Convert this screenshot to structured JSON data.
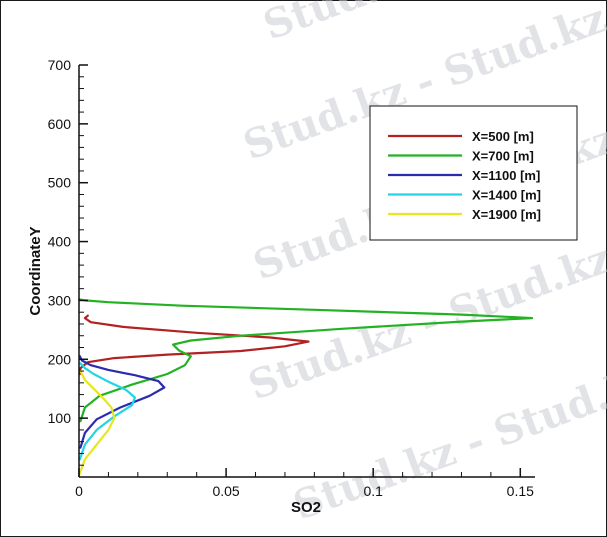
{
  "chart_data": {
    "type": "line",
    "xlabel": "SO2",
    "ylabel": "CoordinateY",
    "xlim": [
      0,
      0.155
    ],
    "ylim": [
      0,
      700
    ],
    "x_ticks": [
      0,
      0.05,
      0.1,
      0.15
    ],
    "x_tick_labels": [
      "0",
      "0.05",
      "0.1",
      "0.15"
    ],
    "y_ticks": [
      100,
      200,
      300,
      400,
      500,
      600,
      700
    ],
    "y_tick_labels": [
      "100",
      "200",
      "300",
      "400",
      "500",
      "600",
      "700"
    ],
    "legend_position": "top-right",
    "series": [
      {
        "name": "X=500 [m]",
        "color": "#b22222",
        "points": [
          [
            0.0003,
            175
          ],
          [
            0.0005,
            185
          ],
          [
            0.003,
            195
          ],
          [
            0.012,
            202
          ],
          [
            0.03,
            208
          ],
          [
            0.055,
            214
          ],
          [
            0.07,
            222
          ],
          [
            0.078,
            230
          ],
          [
            0.065,
            237
          ],
          [
            0.04,
            245
          ],
          [
            0.015,
            255
          ],
          [
            0.004,
            263
          ],
          [
            0.002,
            270
          ],
          [
            0.003,
            274
          ]
        ]
      },
      {
        "name": "X=700 [m]",
        "color": "#22b222",
        "points": [
          [
            0.0005,
            95
          ],
          [
            0.002,
            118
          ],
          [
            0.007,
            138
          ],
          [
            0.018,
            157
          ],
          [
            0.03,
            175
          ],
          [
            0.036,
            190
          ],
          [
            0.038,
            205
          ],
          [
            0.034,
            215
          ],
          [
            0.032,
            225
          ],
          [
            0.038,
            232
          ],
          [
            0.055,
            240
          ],
          [
            0.09,
            252
          ],
          [
            0.13,
            264
          ],
          [
            0.154,
            270
          ],
          [
            0.13,
            276
          ],
          [
            0.08,
            284
          ],
          [
            0.035,
            291
          ],
          [
            0.01,
            297
          ],
          [
            0.002,
            300
          ],
          [
            0,
            302
          ]
        ]
      },
      {
        "name": "X=1100 [m]",
        "color": "#2b2bb0",
        "points": [
          [
            0.0005,
            50
          ],
          [
            0.002,
            75
          ],
          [
            0.006,
            98
          ],
          [
            0.014,
            118
          ],
          [
            0.024,
            138
          ],
          [
            0.029,
            152
          ],
          [
            0.027,
            163
          ],
          [
            0.019,
            173
          ],
          [
            0.01,
            182
          ],
          [
            0.004,
            190
          ],
          [
            0.001,
            198
          ],
          [
            0.0003,
            205
          ]
        ]
      },
      {
        "name": "X=1400 [m]",
        "color": "#22d4e6",
        "points": [
          [
            0.0003,
            30
          ],
          [
            0.002,
            55
          ],
          [
            0.006,
            80
          ],
          [
            0.012,
            103
          ],
          [
            0.018,
            122
          ],
          [
            0.019,
            135
          ],
          [
            0.016,
            148
          ],
          [
            0.01,
            162
          ],
          [
            0.005,
            175
          ],
          [
            0.002,
            185
          ],
          [
            0.0005,
            193
          ]
        ]
      },
      {
        "name": "X=1900 [m]",
        "color": "#e6e622",
        "points": [
          [
            0.0002,
            5
          ],
          [
            0.002,
            30
          ],
          [
            0.006,
            55
          ],
          [
            0.01,
            80
          ],
          [
            0.012,
            100
          ],
          [
            0.011,
            118
          ],
          [
            0.008,
            135
          ],
          [
            0.005,
            150
          ],
          [
            0.002,
            165
          ],
          [
            0.0005,
            180
          ]
        ]
      }
    ]
  },
  "watermark": {
    "text": "Stud.kz"
  }
}
